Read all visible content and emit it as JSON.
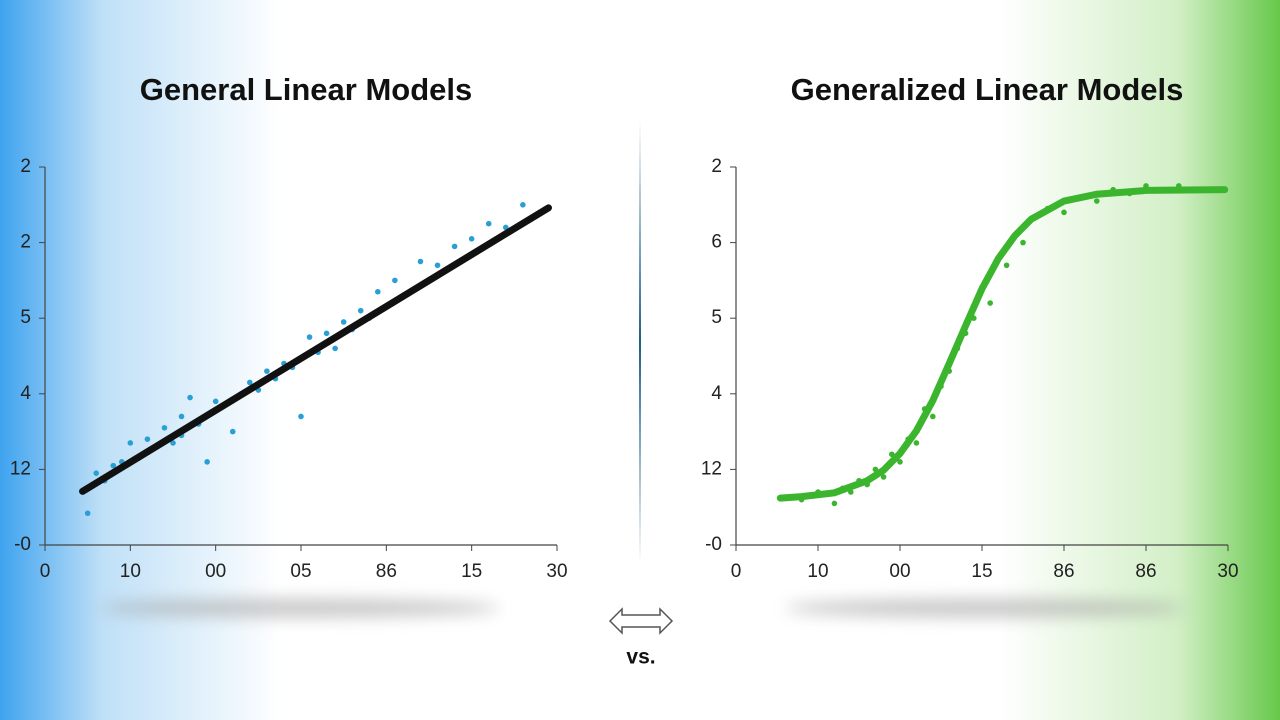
{
  "chart_data": [
    {
      "type": "scatter",
      "title": "General Linear Models",
      "xlim": [
        0,
        30
      ],
      "ylim": [
        0,
        5
      ],
      "xticks": [
        {
          "value": 0,
          "label": "0"
        },
        {
          "value": 5,
          "label": "10"
        },
        {
          "value": 10,
          "label": "00"
        },
        {
          "value": 15,
          "label": "05"
        },
        {
          "value": 20,
          "label": "86"
        },
        {
          "value": 25,
          "label": "15"
        },
        {
          "value": 30,
          "label": "30"
        }
      ],
      "yticks": [
        {
          "value": 0,
          "label": "-0"
        },
        {
          "value": 1,
          "label": "12"
        },
        {
          "value": 2,
          "label": "4"
        },
        {
          "value": 3,
          "label": "5"
        },
        {
          "value": 4,
          "label": "2"
        },
        {
          "value": 5,
          "label": "2"
        }
      ],
      "series": [
        {
          "type": "scatter",
          "color": "#2a9fd6",
          "x": [
            2.5,
            3,
            3.5,
            4,
            4.5,
            5,
            5.5,
            6,
            6.5,
            7,
            7.5,
            8,
            8,
            8.5,
            9,
            9.5,
            10,
            10.5,
            11,
            11.5,
            12,
            12.5,
            13,
            13.5,
            14,
            14.5,
            15,
            15.5,
            16,
            16.5,
            17,
            17.5,
            18,
            18.5,
            19,
            19.5,
            20,
            20.5,
            21,
            22,
            23,
            24,
            25,
            26,
            27,
            28
          ],
          "values": [
            0.42,
            0.95,
            0.85,
            1.05,
            1.1,
            1.35,
            1.15,
            1.4,
            1.3,
            1.55,
            1.35,
            1.7,
            1.45,
            1.95,
            1.6,
            1.1,
            1.9,
            1.85,
            1.5,
            2.0,
            2.15,
            2.05,
            2.3,
            2.2,
            2.4,
            2.35,
            1.7,
            2.75,
            2.55,
            2.8,
            2.6,
            2.95,
            2.85,
            3.1,
            3.0,
            3.35,
            3.15,
            3.5,
            3.3,
            3.75,
            3.7,
            3.95,
            4.05,
            4.25,
            4.2,
            4.5
          ]
        },
        {
          "type": "line",
          "color": "#111111",
          "x": [
            2.2,
            29.5
          ],
          "values": [
            0.71,
            4.46
          ]
        }
      ]
    },
    {
      "type": "scatter",
      "title": "Generalized Linear Models",
      "xlim": [
        0,
        30
      ],
      "ylim": [
        0,
        5
      ],
      "xticks": [
        {
          "value": 0,
          "label": "0"
        },
        {
          "value": 5,
          "label": "10"
        },
        {
          "value": 10,
          "label": "00"
        },
        {
          "value": 15,
          "label": "15"
        },
        {
          "value": 20,
          "label": "86"
        },
        {
          "value": 25,
          "label": "86"
        },
        {
          "value": 30,
          "label": "30"
        }
      ],
      "yticks": [
        {
          "value": 0,
          "label": "-0"
        },
        {
          "value": 1,
          "label": "12"
        },
        {
          "value": 2,
          "label": "4"
        },
        {
          "value": 3,
          "label": "5"
        },
        {
          "value": 4,
          "label": "6"
        },
        {
          "value": 5,
          "label": "2"
        }
      ],
      "series": [
        {
          "type": "scatter",
          "color": "#3cb52e",
          "x": [
            4,
            5,
            6,
            6.5,
            7,
            7.5,
            8,
            8.5,
            9,
            9.5,
            10,
            10.5,
            11,
            11.5,
            12,
            12.5,
            13,
            13.5,
            14,
            14.5,
            15,
            15.5,
            16,
            16.5,
            17,
            17.5,
            18,
            19,
            20,
            21,
            22,
            23,
            24,
            25,
            26,
            27
          ],
          "values": [
            0.6,
            0.7,
            0.55,
            0.75,
            0.7,
            0.85,
            0.8,
            1.0,
            0.9,
            1.2,
            1.1,
            1.4,
            1.35,
            1.8,
            1.7,
            2.1,
            2.3,
            2.6,
            2.8,
            3.0,
            3.4,
            3.2,
            3.8,
            3.7,
            4.1,
            4.0,
            4.3,
            4.45,
            4.4,
            4.6,
            4.55,
            4.7,
            4.65,
            4.75,
            4.7,
            4.75
          ]
        },
        {
          "type": "line",
          "color": "#3cb52e",
          "x": [
            2.7,
            4,
            6,
            8,
            9,
            10,
            11,
            12,
            13,
            14,
            15,
            16,
            17,
            18,
            20,
            22,
            25,
            29.8
          ],
          "values": [
            0.62,
            0.64,
            0.69,
            0.85,
            0.99,
            1.21,
            1.51,
            1.91,
            2.4,
            2.9,
            3.39,
            3.79,
            4.09,
            4.31,
            4.55,
            4.64,
            4.69,
            4.7
          ]
        }
      ]
    }
  ],
  "vs_label": "vs."
}
